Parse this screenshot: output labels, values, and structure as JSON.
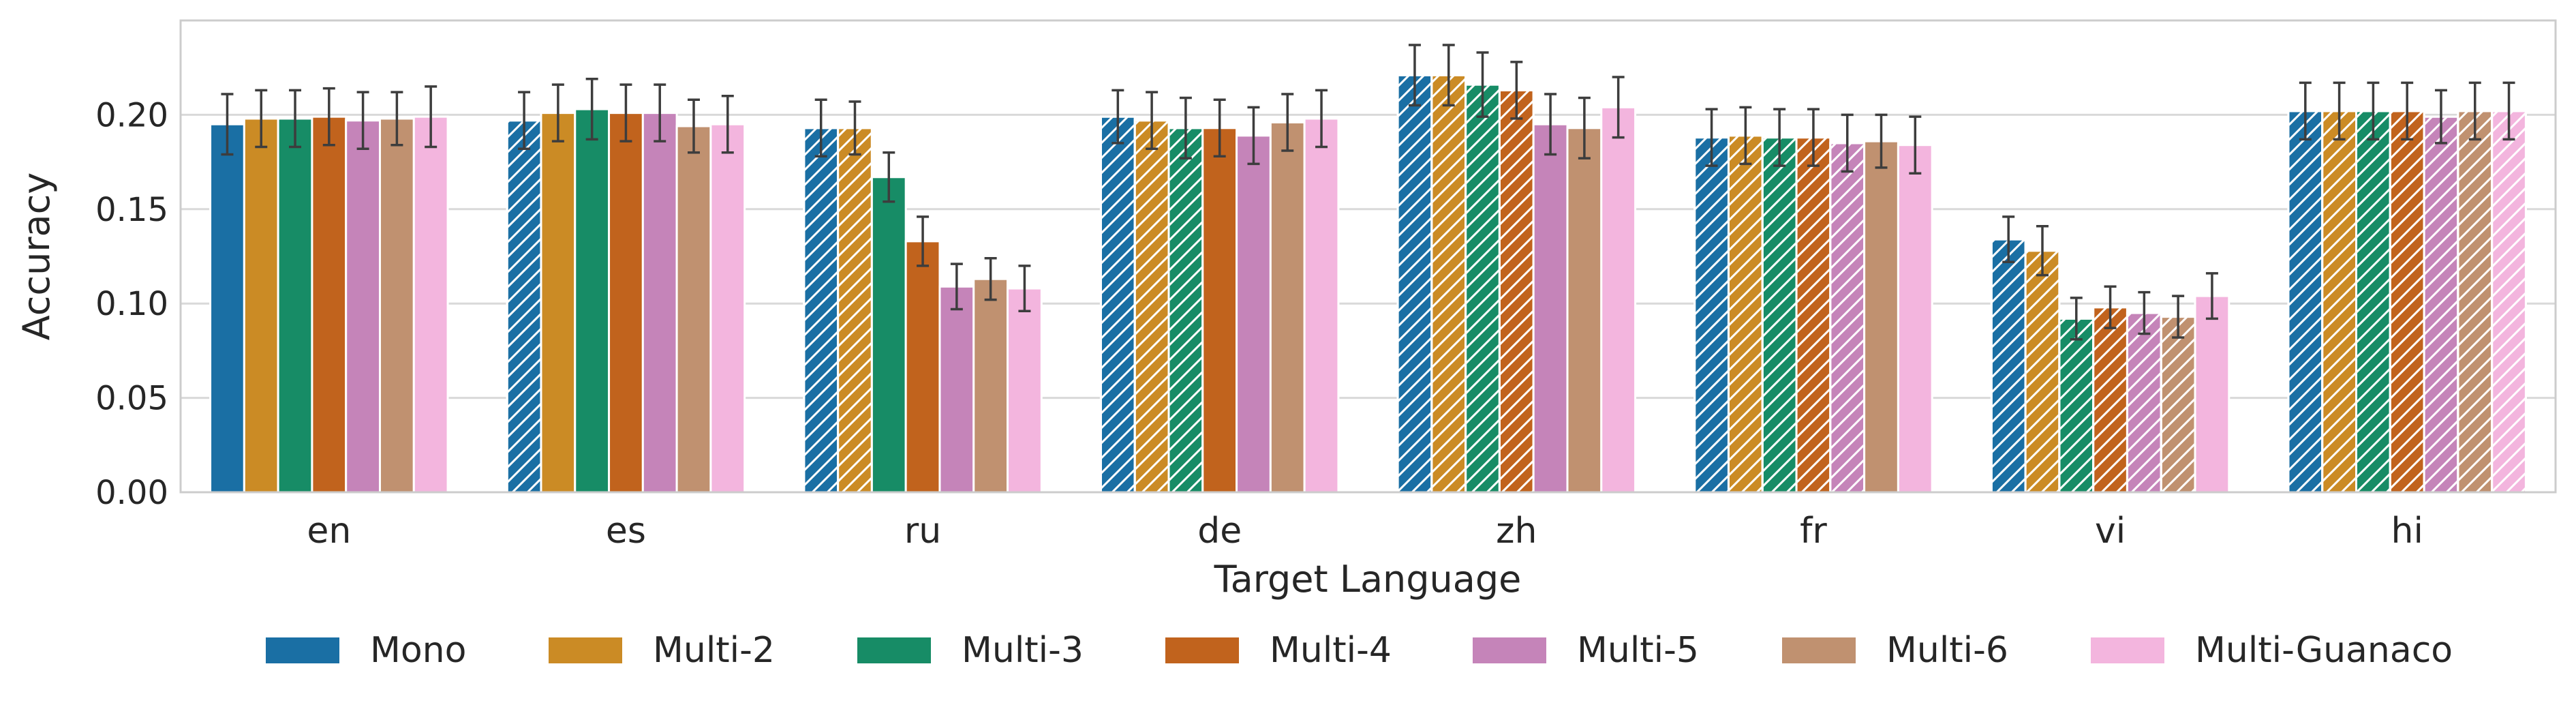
{
  "chart_data": {
    "type": "bar",
    "xlabel": "Target Language",
    "ylabel": "Accuracy",
    "ylim": [
      0,
      0.25
    ],
    "yticks": [
      "0.00",
      "0.05",
      "0.10",
      "0.15",
      "0.20"
    ],
    "grid": true,
    "legend_placement": "bottom",
    "categories": [
      "en",
      "es",
      "ru",
      "de",
      "zh",
      "fr",
      "vi",
      "hi"
    ],
    "hatched_counts": [
      0,
      1,
      2,
      3,
      4,
      5,
      6,
      7
    ],
    "series": [
      {
        "name": "Mono",
        "color": "#1a6fa4",
        "values": [
          0.195,
          0.197,
          0.193,
          0.199,
          0.221,
          0.188,
          0.134,
          0.202
        ],
        "errors": [
          0.016,
          0.015,
          0.015,
          0.014,
          0.016,
          0.015,
          0.012,
          0.015
        ]
      },
      {
        "name": "Multi-2",
        "color": "#cb8b25",
        "values": [
          0.198,
          0.201,
          0.193,
          0.197,
          0.221,
          0.189,
          0.128,
          0.202
        ],
        "errors": [
          0.015,
          0.015,
          0.014,
          0.015,
          0.016,
          0.015,
          0.013,
          0.015
        ]
      },
      {
        "name": "Multi-3",
        "color": "#178c66",
        "values": [
          0.198,
          0.203,
          0.167,
          0.193,
          0.216,
          0.188,
          0.092,
          0.202
        ],
        "errors": [
          0.015,
          0.016,
          0.013,
          0.016,
          0.017,
          0.015,
          0.011,
          0.015
        ]
      },
      {
        "name": "Multi-4",
        "color": "#c1631d",
        "values": [
          0.199,
          0.201,
          0.133,
          0.193,
          0.213,
          0.188,
          0.098,
          0.202
        ],
        "errors": [
          0.015,
          0.015,
          0.013,
          0.015,
          0.015,
          0.015,
          0.011,
          0.015
        ]
      },
      {
        "name": "Multi-5",
        "color": "#c584b9",
        "values": [
          0.197,
          0.201,
          0.109,
          0.189,
          0.195,
          0.185,
          0.095,
          0.199
        ],
        "errors": [
          0.015,
          0.015,
          0.012,
          0.015,
          0.016,
          0.015,
          0.011,
          0.014
        ]
      },
      {
        "name": "Multi-6",
        "color": "#c09170",
        "values": [
          0.198,
          0.194,
          0.113,
          0.196,
          0.193,
          0.186,
          0.093,
          0.202
        ],
        "errors": [
          0.014,
          0.014,
          0.011,
          0.015,
          0.016,
          0.014,
          0.011,
          0.015
        ]
      },
      {
        "name": "Multi-Guanaco",
        "color": "#f3b5de",
        "values": [
          0.199,
          0.195,
          0.108,
          0.198,
          0.204,
          0.184,
          0.104,
          0.202
        ],
        "errors": [
          0.016,
          0.015,
          0.012,
          0.015,
          0.016,
          0.015,
          0.012,
          0.015
        ]
      }
    ]
  }
}
